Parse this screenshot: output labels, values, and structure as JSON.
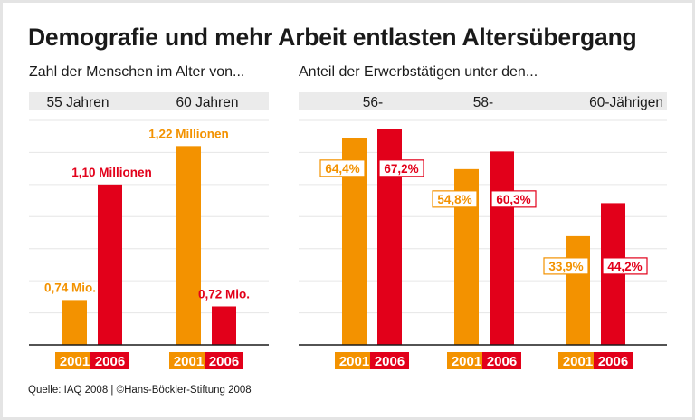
{
  "title": "Demografie und mehr Arbeit entlasten Altersübergang",
  "source": "Quelle: IAQ 2008 | ©Hans-Böckler-Stiftung 2008",
  "colors": {
    "y2001": "#f39200",
    "y2006": "#e2001a",
    "grid": "#e6e6e6",
    "header_bg": "#ebebeb"
  },
  "chart_data": [
    {
      "type": "bar",
      "subtitle": "Zahl der Menschen im Alter von...",
      "categories": [
        "55 Jahren",
        "60 Jahren"
      ],
      "series": [
        {
          "name": "2001",
          "values": [
            0.74,
            1.22
          ],
          "labels": [
            "0,74 Mio.",
            "1,22 Millionen"
          ]
        },
        {
          "name": "2006",
          "values": [
            1.1,
            0.72
          ],
          "labels": [
            "1,10 Millionen",
            "0,72 Mio."
          ]
        }
      ],
      "unit": "Millionen",
      "ylim": [
        0.6,
        1.3
      ],
      "grid": true
    },
    {
      "type": "bar",
      "subtitle": "Anteil der Erwerbstätigen unter den...",
      "categories": [
        "56-",
        "58-",
        "60-Jährigen"
      ],
      "series": [
        {
          "name": "2001",
          "values": [
            64.4,
            54.8,
            33.9
          ],
          "labels": [
            "64,4%",
            "54,8%",
            "33,9%"
          ]
        },
        {
          "name": "2006",
          "values": [
            67.2,
            60.3,
            44.2
          ],
          "labels": [
            "67,2%",
            "60,3%",
            "44,2%"
          ]
        }
      ],
      "unit": "%",
      "ylim": [
        0,
        70
      ],
      "grid": true
    }
  ]
}
